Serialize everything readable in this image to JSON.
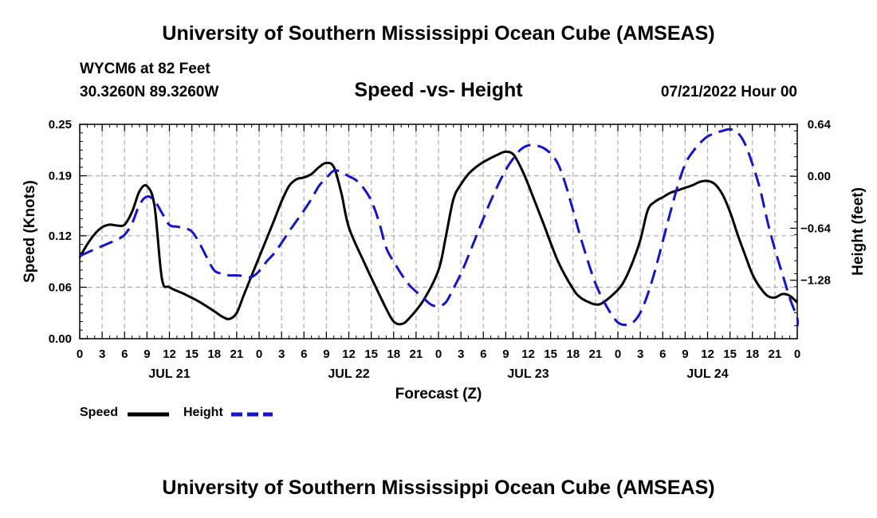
{
  "header": {
    "title": "University of Southern Mississippi Ocean Cube (AMSEAS)",
    "station": "WYCM6 at 82 Feet",
    "coords": "30.3260N  89.3260W",
    "subtitle": "Speed -vs- Height",
    "datetime": "07/21/2022 Hour 00",
    "footer_title": "University of Southern Mississippi Ocean Cube (AMSEAS)"
  },
  "colors": {
    "speed": "#000000",
    "height": "#1414c8",
    "grid": "#b4b4b4"
  },
  "chart_data": {
    "type": "line",
    "title": "Speed -vs- Height",
    "xlabel": "Forecast (Z)",
    "ylabel": "Speed (Knots)",
    "y2label": "Height (feet)",
    "xlim": [
      0,
      96
    ],
    "ylim": [
      0,
      0.25
    ],
    "y2lim": [
      -2.0,
      0.64
    ],
    "x_ticks": [
      0,
      3,
      6,
      9,
      12,
      15,
      18,
      21,
      24,
      27,
      30,
      33,
      36,
      39,
      42,
      45,
      48,
      51,
      54,
      57,
      60,
      63,
      66,
      69,
      72,
      75,
      78,
      81,
      84,
      87,
      90,
      93,
      96
    ],
    "x_tick_labels": [
      "0",
      "3",
      "6",
      "9",
      "12",
      "15",
      "18",
      "21",
      "0",
      "3",
      "6",
      "9",
      "12",
      "15",
      "18",
      "21",
      "0",
      "3",
      "6",
      "9",
      "12",
      "15",
      "18",
      "21",
      "0",
      "3",
      "6",
      "9",
      "12",
      "15",
      "18",
      "21",
      "0"
    ],
    "day_labels": [
      {
        "x": 12,
        "label": "JUL 21"
      },
      {
        "x": 36,
        "label": "JUL 22"
      },
      {
        "x": 60,
        "label": "JUL 23"
      },
      {
        "x": 84,
        "label": "JUL 24"
      }
    ],
    "y_ticks": [
      0.0,
      0.06,
      0.12,
      0.19,
      0.25
    ],
    "y_tick_labels": [
      "0.00",
      "0.06",
      "0.12",
      "0.19",
      "0.25"
    ],
    "y2_ticks": [
      0.64,
      0.0,
      -0.64,
      -1.28
    ],
    "y2_tick_labels": [
      "0.64",
      "0.00",
      "−0.64",
      "−1.28"
    ],
    "grid": true,
    "legend_placement": "bottom-left",
    "series": [
      {
        "name": "Speed",
        "axis": "left",
        "style": "solid",
        "points": [
          [
            0,
            0.095
          ],
          [
            1,
            0.11
          ],
          [
            2,
            0.122
          ],
          [
            3,
            0.13
          ],
          [
            4,
            0.133
          ],
          [
            5,
            0.132
          ],
          [
            6,
            0.133
          ],
          [
            7,
            0.148
          ],
          [
            8,
            0.172
          ],
          [
            9,
            0.178
          ],
          [
            10,
            0.155
          ],
          [
            11,
            0.07
          ],
          [
            12,
            0.06
          ],
          [
            14,
            0.052
          ],
          [
            16,
            0.043
          ],
          [
            18,
            0.032
          ],
          [
            19,
            0.026
          ],
          [
            20,
            0.023
          ],
          [
            21,
            0.03
          ],
          [
            22,
            0.052
          ],
          [
            24,
            0.095
          ],
          [
            26,
            0.138
          ],
          [
            27,
            0.16
          ],
          [
            28,
            0.178
          ],
          [
            29,
            0.186
          ],
          [
            30,
            0.188
          ],
          [
            31,
            0.192
          ],
          [
            32,
            0.2
          ],
          [
            33,
            0.205
          ],
          [
            34,
            0.2
          ],
          [
            35,
            0.17
          ],
          [
            36,
            0.13
          ],
          [
            38,
            0.09
          ],
          [
            40,
            0.053
          ],
          [
            41,
            0.035
          ],
          [
            42,
            0.02
          ],
          [
            43,
            0.017
          ],
          [
            44,
            0.023
          ],
          [
            46,
            0.045
          ],
          [
            48,
            0.08
          ],
          [
            49,
            0.12
          ],
          [
            50,
            0.163
          ],
          [
            51,
            0.18
          ],
          [
            52,
            0.192
          ],
          [
            53,
            0.2
          ],
          [
            54,
            0.206
          ],
          [
            56,
            0.215
          ],
          [
            57,
            0.218
          ],
          [
            58,
            0.215
          ],
          [
            59,
            0.2
          ],
          [
            60,
            0.18
          ],
          [
            62,
            0.135
          ],
          [
            64,
            0.09
          ],
          [
            66,
            0.058
          ],
          [
            67,
            0.048
          ],
          [
            68,
            0.043
          ],
          [
            69,
            0.04
          ],
          [
            70,
            0.042
          ],
          [
            72,
            0.057
          ],
          [
            73,
            0.07
          ],
          [
            74,
            0.09
          ],
          [
            75,
            0.115
          ],
          [
            76,
            0.15
          ],
          [
            77,
            0.16
          ],
          [
            78,
            0.165
          ],
          [
            79,
            0.17
          ],
          [
            80,
            0.173
          ],
          [
            81,
            0.176
          ],
          [
            82,
            0.179
          ],
          [
            83,
            0.183
          ],
          [
            84,
            0.184
          ],
          [
            85,
            0.18
          ],
          [
            86,
            0.168
          ],
          [
            87,
            0.148
          ],
          [
            88,
            0.122
          ],
          [
            89,
            0.098
          ],
          [
            90,
            0.075
          ],
          [
            91,
            0.06
          ],
          [
            92,
            0.05
          ],
          [
            93,
            0.048
          ],
          [
            94,
            0.052
          ],
          [
            95,
            0.05
          ],
          [
            96,
            0.042
          ]
        ]
      },
      {
        "name": "Height",
        "axis": "right",
        "style": "dashed",
        "points": [
          [
            0,
            -0.98
          ],
          [
            1,
            -0.94
          ],
          [
            2,
            -0.9
          ],
          [
            3,
            -0.86
          ],
          [
            4,
            -0.82
          ],
          [
            5,
            -0.78
          ],
          [
            6,
            -0.72
          ],
          [
            7,
            -0.58
          ],
          [
            8,
            -0.35
          ],
          [
            9,
            -0.25
          ],
          [
            10,
            -0.3
          ],
          [
            11,
            -0.45
          ],
          [
            12,
            -0.6
          ],
          [
            13,
            -0.62
          ],
          [
            14,
            -0.64
          ],
          [
            15,
            -0.68
          ],
          [
            16,
            -0.82
          ],
          [
            17,
            -1.0
          ],
          [
            18,
            -1.16
          ],
          [
            19,
            -1.2
          ],
          [
            20,
            -1.22
          ],
          [
            21,
            -1.22
          ],
          [
            22,
            -1.23
          ],
          [
            23,
            -1.24
          ],
          [
            24,
            -1.17
          ],
          [
            25,
            -1.05
          ],
          [
            26,
            -0.95
          ],
          [
            27,
            -0.82
          ],
          [
            28,
            -0.68
          ],
          [
            29,
            -0.55
          ],
          [
            30,
            -0.42
          ],
          [
            31,
            -0.28
          ],
          [
            32,
            -0.12
          ],
          [
            33,
            -0.02
          ],
          [
            34,
            0.07
          ],
          [
            35,
            0.05
          ],
          [
            36,
            0.0
          ],
          [
            37,
            -0.05
          ],
          [
            38,
            -0.15
          ],
          [
            39,
            -0.3
          ],
          [
            40,
            -0.55
          ],
          [
            41,
            -0.88
          ],
          [
            42,
            -1.05
          ],
          [
            43,
            -1.2
          ],
          [
            44,
            -1.33
          ],
          [
            45,
            -1.42
          ],
          [
            46,
            -1.5
          ],
          [
            47,
            -1.58
          ],
          [
            48,
            -1.6
          ],
          [
            49,
            -1.55
          ],
          [
            50,
            -1.38
          ],
          [
            51,
            -1.2
          ],
          [
            52,
            -0.98
          ],
          [
            53,
            -0.75
          ],
          [
            54,
            -0.52
          ],
          [
            55,
            -0.3
          ],
          [
            56,
            -0.1
          ],
          [
            57,
            0.08
          ],
          [
            58,
            0.22
          ],
          [
            59,
            0.33
          ],
          [
            60,
            0.38
          ],
          [
            61,
            0.38
          ],
          [
            62,
            0.35
          ],
          [
            63,
            0.28
          ],
          [
            64,
            0.15
          ],
          [
            65,
            -0.1
          ],
          [
            66,
            -0.42
          ],
          [
            67,
            -0.75
          ],
          [
            68,
            -1.05
          ],
          [
            69,
            -1.32
          ],
          [
            70,
            -1.52
          ],
          [
            71,
            -1.68
          ],
          [
            72,
            -1.8
          ],
          [
            73,
            -1.83
          ],
          [
            74,
            -1.8
          ],
          [
            75,
            -1.68
          ],
          [
            76,
            -1.45
          ],
          [
            77,
            -1.15
          ],
          [
            78,
            -0.8
          ],
          [
            79,
            -0.45
          ],
          [
            80,
            -0.12
          ],
          [
            81,
            0.15
          ],
          [
            82,
            0.3
          ],
          [
            83,
            0.41
          ],
          [
            84,
            0.49
          ],
          [
            85,
            0.53
          ],
          [
            86,
            0.56
          ],
          [
            87,
            0.58
          ],
          [
            88,
            0.54
          ],
          [
            89,
            0.4
          ],
          [
            90,
            0.15
          ],
          [
            91,
            -0.15
          ],
          [
            92,
            -0.55
          ],
          [
            93,
            -0.9
          ],
          [
            94,
            -1.2
          ],
          [
            95,
            -1.5
          ],
          [
            96,
            -1.75
          ],
          [
            96,
            -1.85
          ]
        ]
      }
    ]
  }
}
